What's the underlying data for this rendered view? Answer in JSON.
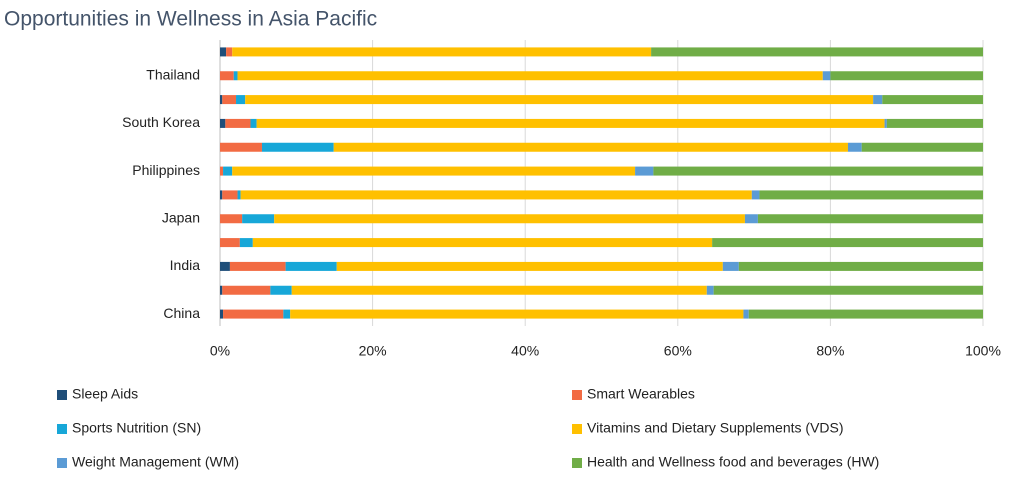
{
  "chart_data": {
    "type": "bar",
    "orientation": "horizontal",
    "stacked": true,
    "title": "Opportunities in Wellness in Asia Pacific",
    "categories": [
      "China",
      null,
      "India",
      null,
      "Japan",
      null,
      "Philippines",
      null,
      "South Korea",
      null,
      "Thailand",
      null
    ],
    "series": [
      {
        "name": "Sleep Aids",
        "color": "#1f4e79",
        "values": [
          0.4,
          0.3,
          1.3,
          0,
          0,
          0.3,
          0,
          0,
          0.7,
          0.3,
          0,
          0.8
        ]
      },
      {
        "name": "Smart Wearables",
        "color": "#f26b43",
        "values": [
          7.9,
          6.3,
          7.3,
          2.6,
          2.9,
          2.0,
          0.4,
          5.5,
          3.3,
          1.8,
          1.8,
          0.8
        ]
      },
      {
        "name": "Sports Nutrition (SN)",
        "color": "#17a7d8",
        "values": [
          0.9,
          2.8,
          6.7,
          1.7,
          4.2,
          0.4,
          1.2,
          9.4,
          0.8,
          1.2,
          0.5,
          0
        ]
      },
      {
        "name": "Vitamins and Dietary Supplements (VDS)",
        "color": "#ffc000",
        "values": [
          59.4,
          54.4,
          50.6,
          60.2,
          61.7,
          67.0,
          52.8,
          67.4,
          82.3,
          82.3,
          76.7,
          54.9
        ]
      },
      {
        "name": "Weight Management (WM)",
        "color": "#5b9bd5",
        "values": [
          0.7,
          0.9,
          2.1,
          0,
          1.7,
          1.0,
          2.4,
          1.8,
          0.3,
          1.2,
          1.0,
          0
        ]
      },
      {
        "name": "Health and Wellness food and beverages (HW)",
        "color": "#70ad47",
        "values": [
          30.7,
          35.3,
          32.0,
          35.5,
          29.5,
          29.3,
          43.2,
          15.9,
          12.6,
          13.2,
          20.0,
          43.5
        ]
      }
    ],
    "xlim": [
      0,
      100
    ],
    "xticks": [
      {
        "value": 0,
        "label": "0%"
      },
      {
        "value": 20,
        "label": "20%"
      },
      {
        "value": 40,
        "label": "40%"
      },
      {
        "value": 60,
        "label": "60%"
      },
      {
        "value": 80,
        "label": "80%"
      },
      {
        "value": 100,
        "label": "100%"
      }
    ],
    "grid": true,
    "legend": "bottom"
  }
}
